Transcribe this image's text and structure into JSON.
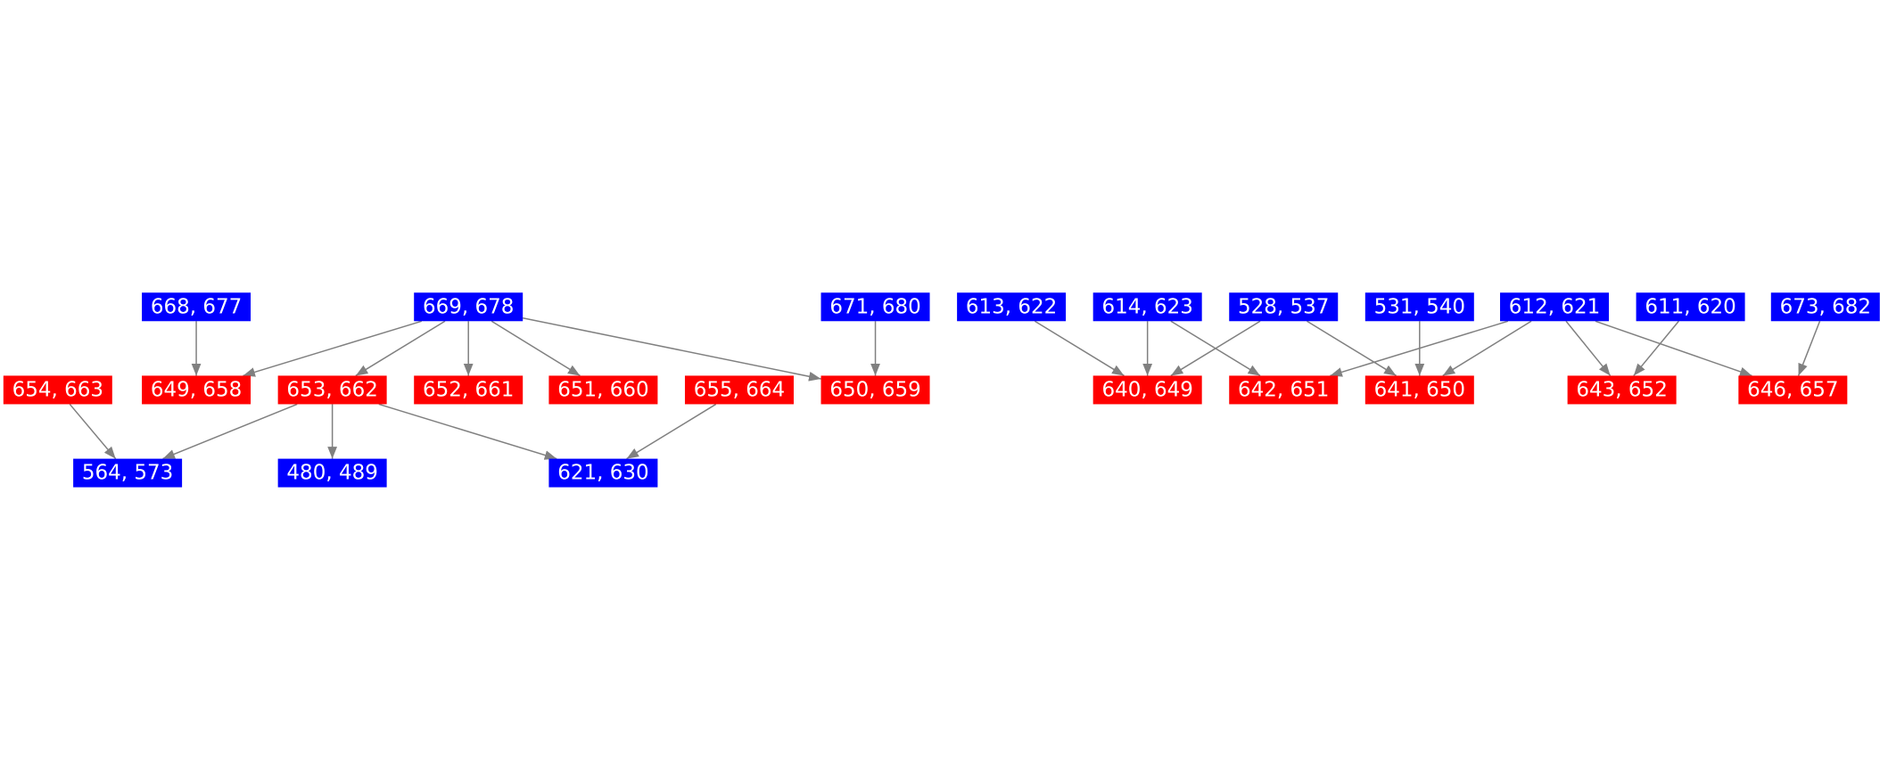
{
  "nodes": [
    {
      "label": "668, 677",
      "color": "#0000ff"
    },
    {
      "label": "669, 678",
      "color": "#0000ff"
    },
    {
      "label": "671, 680",
      "color": "#0000ff"
    },
    {
      "label": "613, 622",
      "color": "#0000ff"
    },
    {
      "label": "614, 623",
      "color": "#0000ff"
    },
    {
      "label": "528, 537",
      "color": "#0000ff"
    },
    {
      "label": "531, 540",
      "color": "#0000ff"
    },
    {
      "label": "612, 621",
      "color": "#0000ff"
    },
    {
      "label": "611, 620",
      "color": "#0000ff"
    },
    {
      "label": "673, 682",
      "color": "#0000ff"
    },
    {
      "label": "654, 663",
      "color": "#ff0000"
    },
    {
      "label": "649, 658",
      "color": "#ff0000"
    },
    {
      "label": "653, 662",
      "color": "#ff0000"
    },
    {
      "label": "652, 661",
      "color": "#ff0000"
    },
    {
      "label": "651, 660",
      "color": "#ff0000"
    },
    {
      "label": "655, 664",
      "color": "#ff0000"
    },
    {
      "label": "650, 659",
      "color": "#ff0000"
    },
    {
      "label": "640, 649",
      "color": "#ff0000"
    },
    {
      "label": "642, 651",
      "color": "#ff0000"
    },
    {
      "label": "641, 650",
      "color": "#ff0000"
    },
    {
      "label": "643, 652",
      "color": "#ff0000"
    },
    {
      "label": "646, 657",
      "color": "#ff0000"
    },
    {
      "label": "564, 573",
      "color": "#0000ff"
    },
    {
      "label": "480, 489",
      "color": "#0000ff"
    },
    {
      "label": "621, 630",
      "color": "#0000ff"
    }
  ],
  "edges": [
    [
      0,
      11
    ],
    [
      1,
      11
    ],
    [
      1,
      12
    ],
    [
      1,
      13
    ],
    [
      1,
      14
    ],
    [
      1,
      16
    ],
    [
      2,
      16
    ],
    [
      10,
      22
    ],
    [
      12,
      22
    ],
    [
      12,
      23
    ],
    [
      12,
      24
    ],
    [
      15,
      24
    ],
    [
      3,
      17
    ],
    [
      4,
      17
    ],
    [
      4,
      18
    ],
    [
      5,
      17
    ],
    [
      5,
      19
    ],
    [
      6,
      19
    ],
    [
      7,
      18
    ],
    [
      7,
      19
    ],
    [
      7,
      20
    ],
    [
      7,
      21
    ],
    [
      8,
      20
    ],
    [
      9,
      21
    ]
  ]
}
